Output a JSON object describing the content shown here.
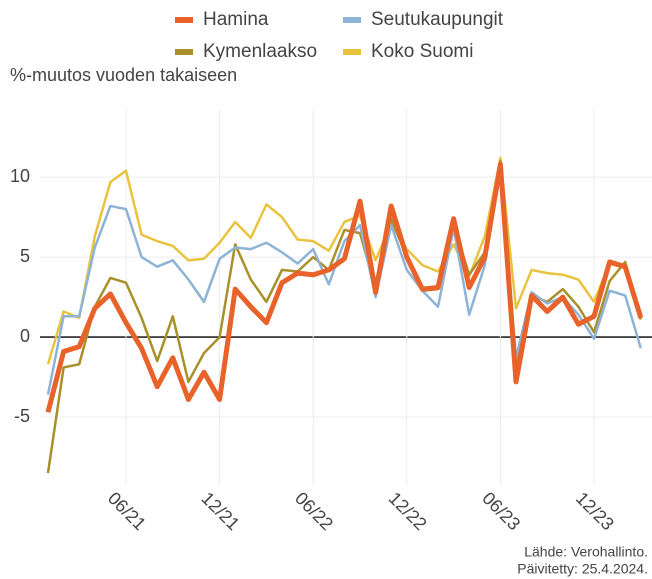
{
  "chart_data": {
    "type": "line",
    "y_label": "%-muutos vuoden takaiseen",
    "source": "Lähde: Verohallinto.",
    "updated": "Päivitetty: 25.4.2024.",
    "categories": [
      null,
      null,
      null,
      null,
      null,
      "06/21",
      null,
      null,
      null,
      null,
      null,
      "12/21",
      null,
      null,
      null,
      null,
      null,
      "06/22",
      null,
      null,
      null,
      null,
      null,
      "12/22",
      null,
      null,
      null,
      null,
      null,
      "06/23",
      null,
      null,
      null,
      null,
      null,
      "12/23",
      null,
      null,
      null
    ],
    "series": [
      {
        "name": "Hamina",
        "color": "#e8622a",
        "values": [
          -4.7,
          -0.9,
          -0.6,
          1.8,
          2.7,
          0.9,
          -0.7,
          -3.1,
          -1.3,
          -3.9,
          -2.2,
          -3.9,
          3.0,
          1.9,
          0.9,
          3.4,
          4.0,
          3.9,
          4.2,
          4.9,
          8.5,
          2.8,
          8.2,
          5.0,
          3.0,
          3.1,
          7.4,
          3.1,
          5.0,
          10.8,
          -2.8,
          2.6,
          1.6,
          2.5,
          0.8,
          1.3,
          4.7,
          4.4,
          1.2
        ]
      },
      {
        "name": "Seutukaupungit",
        "color": "#8db3d6",
        "values": [
          -3.6,
          1.3,
          1.3,
          5.6,
          8.2,
          8.0,
          5.0,
          4.4,
          4.8,
          3.6,
          2.2,
          4.9,
          5.6,
          5.5,
          5.9,
          5.3,
          4.6,
          5.5,
          3.3,
          6.0,
          7.0,
          2.5,
          7.0,
          4.2,
          2.9,
          1.9,
          6.8,
          1.4,
          4.5,
          10.5,
          -1.3,
          2.8,
          2.1,
          2.5,
          1.4,
          -0.1,
          2.9,
          2.6,
          -0.7
        ]
      },
      {
        "name": "Kymenlaakso",
        "color": "#a8902a",
        "values": [
          -8.5,
          -1.9,
          -1.7,
          1.9,
          3.7,
          3.4,
          1.2,
          -1.5,
          1.3,
          -2.8,
          -1.0,
          0.0,
          5.8,
          3.6,
          2.2,
          4.2,
          4.1,
          5.0,
          4.2,
          6.7,
          6.5,
          3.0,
          7.4,
          5.0,
          2.9,
          3.0,
          7.0,
          3.9,
          5.3,
          11.0,
          -1.9,
          2.6,
          2.2,
          3.0,
          1.9,
          0.3,
          3.5,
          4.7,
          1.1
        ]
      },
      {
        "name": "Koko Suomi",
        "color": "#e9c33e",
        "values": [
          -1.7,
          1.6,
          1.2,
          6.3,
          9.7,
          10.4,
          6.4,
          6.0,
          5.7,
          4.8,
          4.9,
          5.9,
          7.2,
          6.2,
          8.3,
          7.5,
          6.1,
          6.0,
          5.4,
          7.2,
          7.6,
          4.8,
          7.1,
          5.5,
          4.5,
          4.1,
          5.8,
          3.8,
          6.3,
          11.2,
          1.8,
          4.2,
          4.0,
          3.9,
          3.6,
          2.2,
          4.6,
          4.3,
          1.5
        ]
      }
    ],
    "ylim": [
      -9.25,
      14.2
    ],
    "yticks": [
      -5,
      0,
      5,
      10
    ],
    "grid": true
  }
}
